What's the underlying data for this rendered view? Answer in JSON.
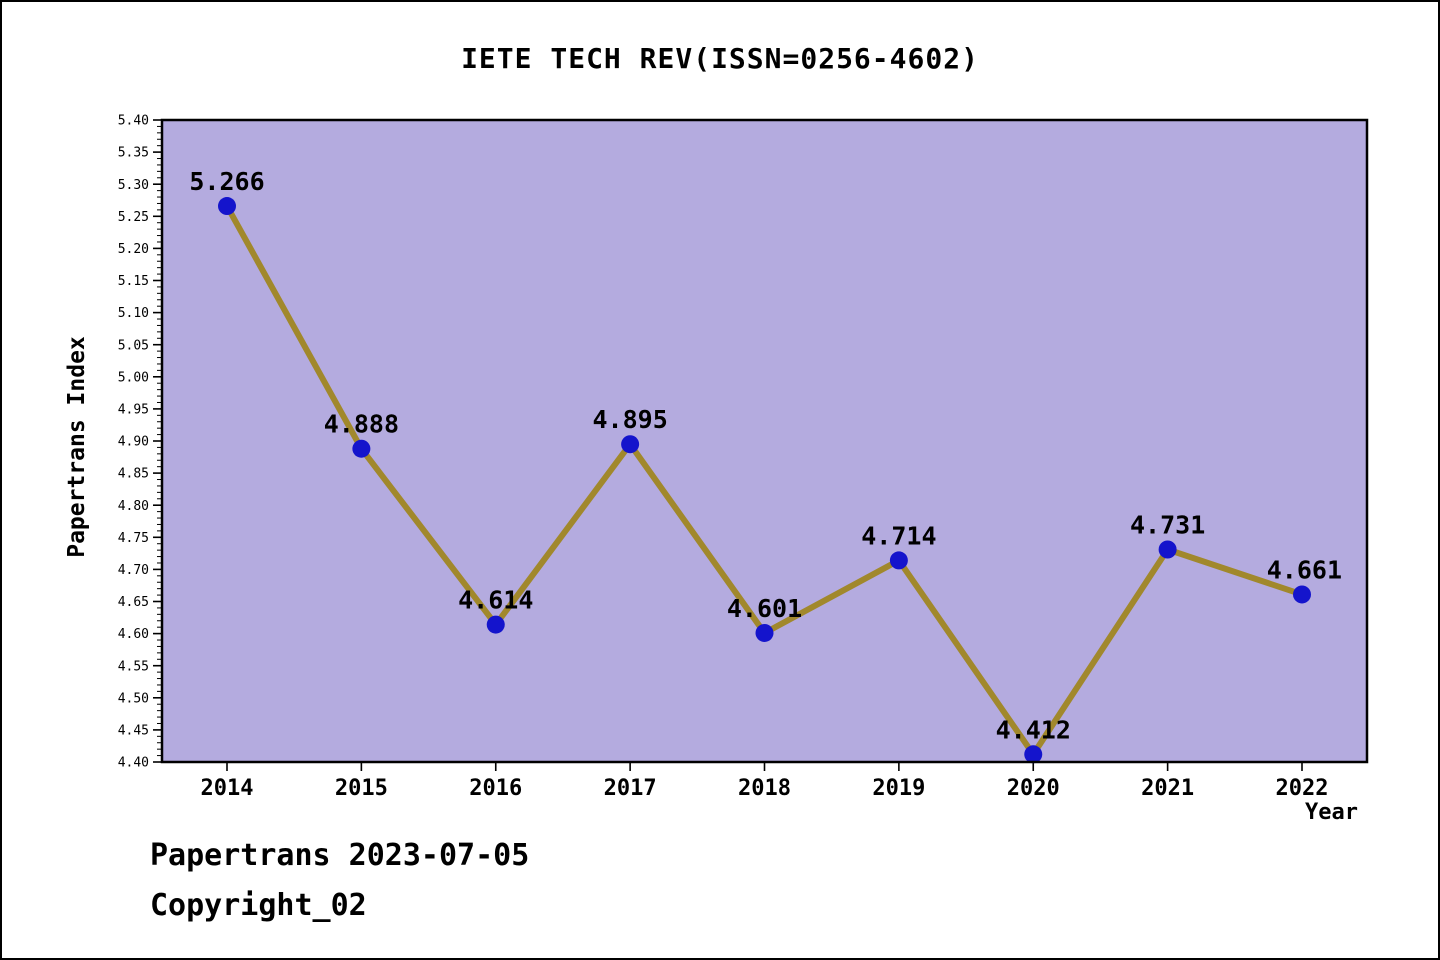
{
  "title": "IETE TECH REV(ISSN=0256-4602)",
  "footer": {
    "line1": "Papertrans 2023-07-05",
    "line2": "Copyright_02"
  },
  "chart_data": {
    "type": "line",
    "title": "IETE TECH REV(ISSN=0256-4602)",
    "xlabel": "Year",
    "ylabel": "Papertrans Index",
    "categories": [
      2014,
      2015,
      2016,
      2017,
      2018,
      2019,
      2020,
      2021,
      2022
    ],
    "values": [
      5.266,
      4.888,
      4.614,
      4.895,
      4.601,
      4.714,
      4.412,
      4.731,
      4.661
    ],
    "point_labels": [
      "5.266",
      "4.888",
      "4.614",
      "4.895",
      "4.601",
      "4.714",
      "4.412",
      "4.731",
      "4.661"
    ],
    "ylim": [
      4.4,
      5.4
    ],
    "ytick_major_step": 0.05,
    "ytick_minor_step": 0.01,
    "grid": false,
    "legend": "none",
    "colors": {
      "line": "#a1882c",
      "marker": "#1414cc",
      "plot_background": "#b4abdf",
      "axis": "#000000",
      "label": "#000000"
    }
  }
}
